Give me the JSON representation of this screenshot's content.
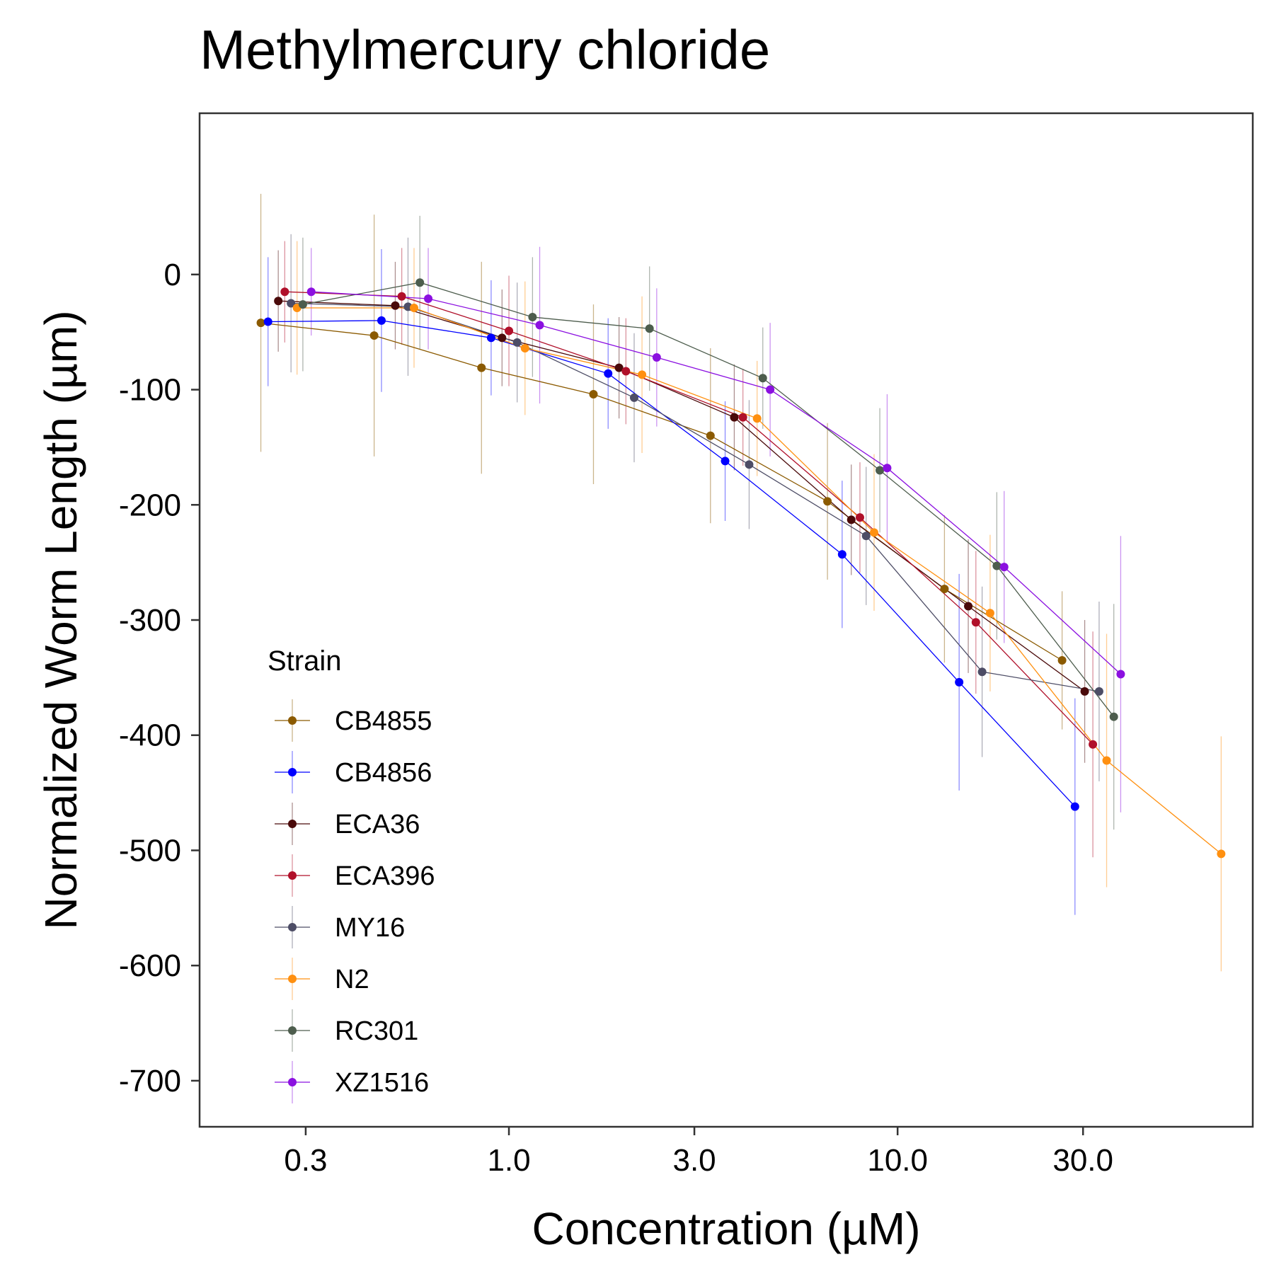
{
  "chart_data": {
    "type": "line",
    "title": "Methylmercury chloride",
    "xlabel": "Concentration (µM)",
    "ylabel": "Normalized Worm Length (µm)",
    "x_scale": "log10",
    "xlim": [
      0.16,
      82
    ],
    "ylim": [
      -740,
      140
    ],
    "x_ticks": [
      0.3,
      1.0,
      3.0,
      10.0,
      30.0
    ],
    "x_tick_labels": [
      "0.3",
      "1.0",
      "3.0",
      "10.0",
      "30.0"
    ],
    "y_ticks": [
      0,
      -100,
      -200,
      -300,
      -400,
      -500,
      -600,
      -700
    ],
    "y_tick_labels": [
      "0",
      "-100",
      "-200",
      "-300",
      "-400",
      "-500",
      "-600",
      "-700"
    ],
    "grid": false,
    "legend": {
      "title": "Strain",
      "placement": "bottom-left inside plot"
    },
    "series": [
      {
        "name": "CB4855",
        "color": "#8B5A00",
        "x": [
          0.23,
          0.45,
          0.85,
          1.65,
          3.3,
          6.6,
          13.2,
          26.5
        ],
        "y": [
          -42,
          -53,
          -81,
          -104,
          -140,
          -197,
          -273,
          -335
        ],
        "err": [
          112,
          105,
          92,
          78,
          76,
          68,
          64,
          60
        ]
      },
      {
        "name": "CB4856",
        "color": "#0000FF",
        "x": [
          0.24,
          0.47,
          0.9,
          1.8,
          3.6,
          7.2,
          14.4,
          28.6
        ],
        "y": [
          -41,
          -40,
          -55,
          -86,
          -162,
          -243,
          -354,
          -462
        ],
        "err": [
          56,
          62,
          50,
          48,
          52,
          64,
          94,
          94
        ]
      },
      {
        "name": "ECA36",
        "color": "#4A0A0A",
        "x": [
          0.255,
          0.51,
          0.96,
          1.92,
          3.8,
          7.6,
          15.2,
          30.3
        ],
        "y": [
          -23,
          -27,
          -55,
          -81,
          -124,
          -213,
          -288,
          -362
        ],
        "err": [
          44,
          38,
          42,
          44,
          46,
          48,
          58,
          62
        ]
      },
      {
        "name": "ECA396",
        "color": "#B0102A",
        "x": [
          0.265,
          0.53,
          1.0,
          2.0,
          4.0,
          8.0,
          15.9,
          31.8
        ],
        "y": [
          -15,
          -19,
          -49,
          -84,
          -124,
          -211,
          -302,
          -408
        ],
        "err": [
          44,
          42,
          48,
          46,
          42,
          48,
          62,
          98
        ]
      },
      {
        "name": "MY16",
        "color": "#4D4D66",
        "x": [
          0.275,
          0.55,
          1.05,
          2.1,
          4.15,
          8.3,
          16.5,
          33.0
        ],
        "y": [
          -25,
          -28,
          -59,
          -107,
          -165,
          -227,
          -345,
          -362
        ],
        "err": [
          60,
          60,
          52,
          56,
          56,
          60,
          74,
          78
        ]
      },
      {
        "name": "N2",
        "color": "#FF9010",
        "x": [
          0.285,
          0.57,
          1.1,
          2.2,
          4.35,
          8.7,
          17.3,
          34.5,
          68.0
        ],
        "y": [
          -29,
          -29,
          -64,
          -87,
          -125,
          -224,
          -294,
          -422,
          -503
        ],
        "err": [
          58,
          52,
          58,
          68,
          50,
          68,
          68,
          110,
          102
        ]
      },
      {
        "name": "RC301",
        "color": "#4D5D4D",
        "x": [
          0.295,
          0.59,
          1.15,
          2.3,
          4.5,
          9.0,
          18.0,
          36.0
        ],
        "y": [
          -26,
          -7,
          -37,
          -47,
          -90,
          -170,
          -253,
          -384
        ],
        "err": [
          58,
          58,
          52,
          54,
          44,
          54,
          64,
          98
        ]
      },
      {
        "name": "XZ1516",
        "color": "#8B10E0",
        "x": [
          0.31,
          0.62,
          1.2,
          2.4,
          4.7,
          9.4,
          18.8,
          37.5
        ],
        "y": [
          -15,
          -21,
          -44,
          -72,
          -100,
          -168,
          -254,
          -347
        ],
        "err": [
          38,
          44,
          68,
          60,
          58,
          64,
          66,
          120
        ]
      }
    ]
  }
}
